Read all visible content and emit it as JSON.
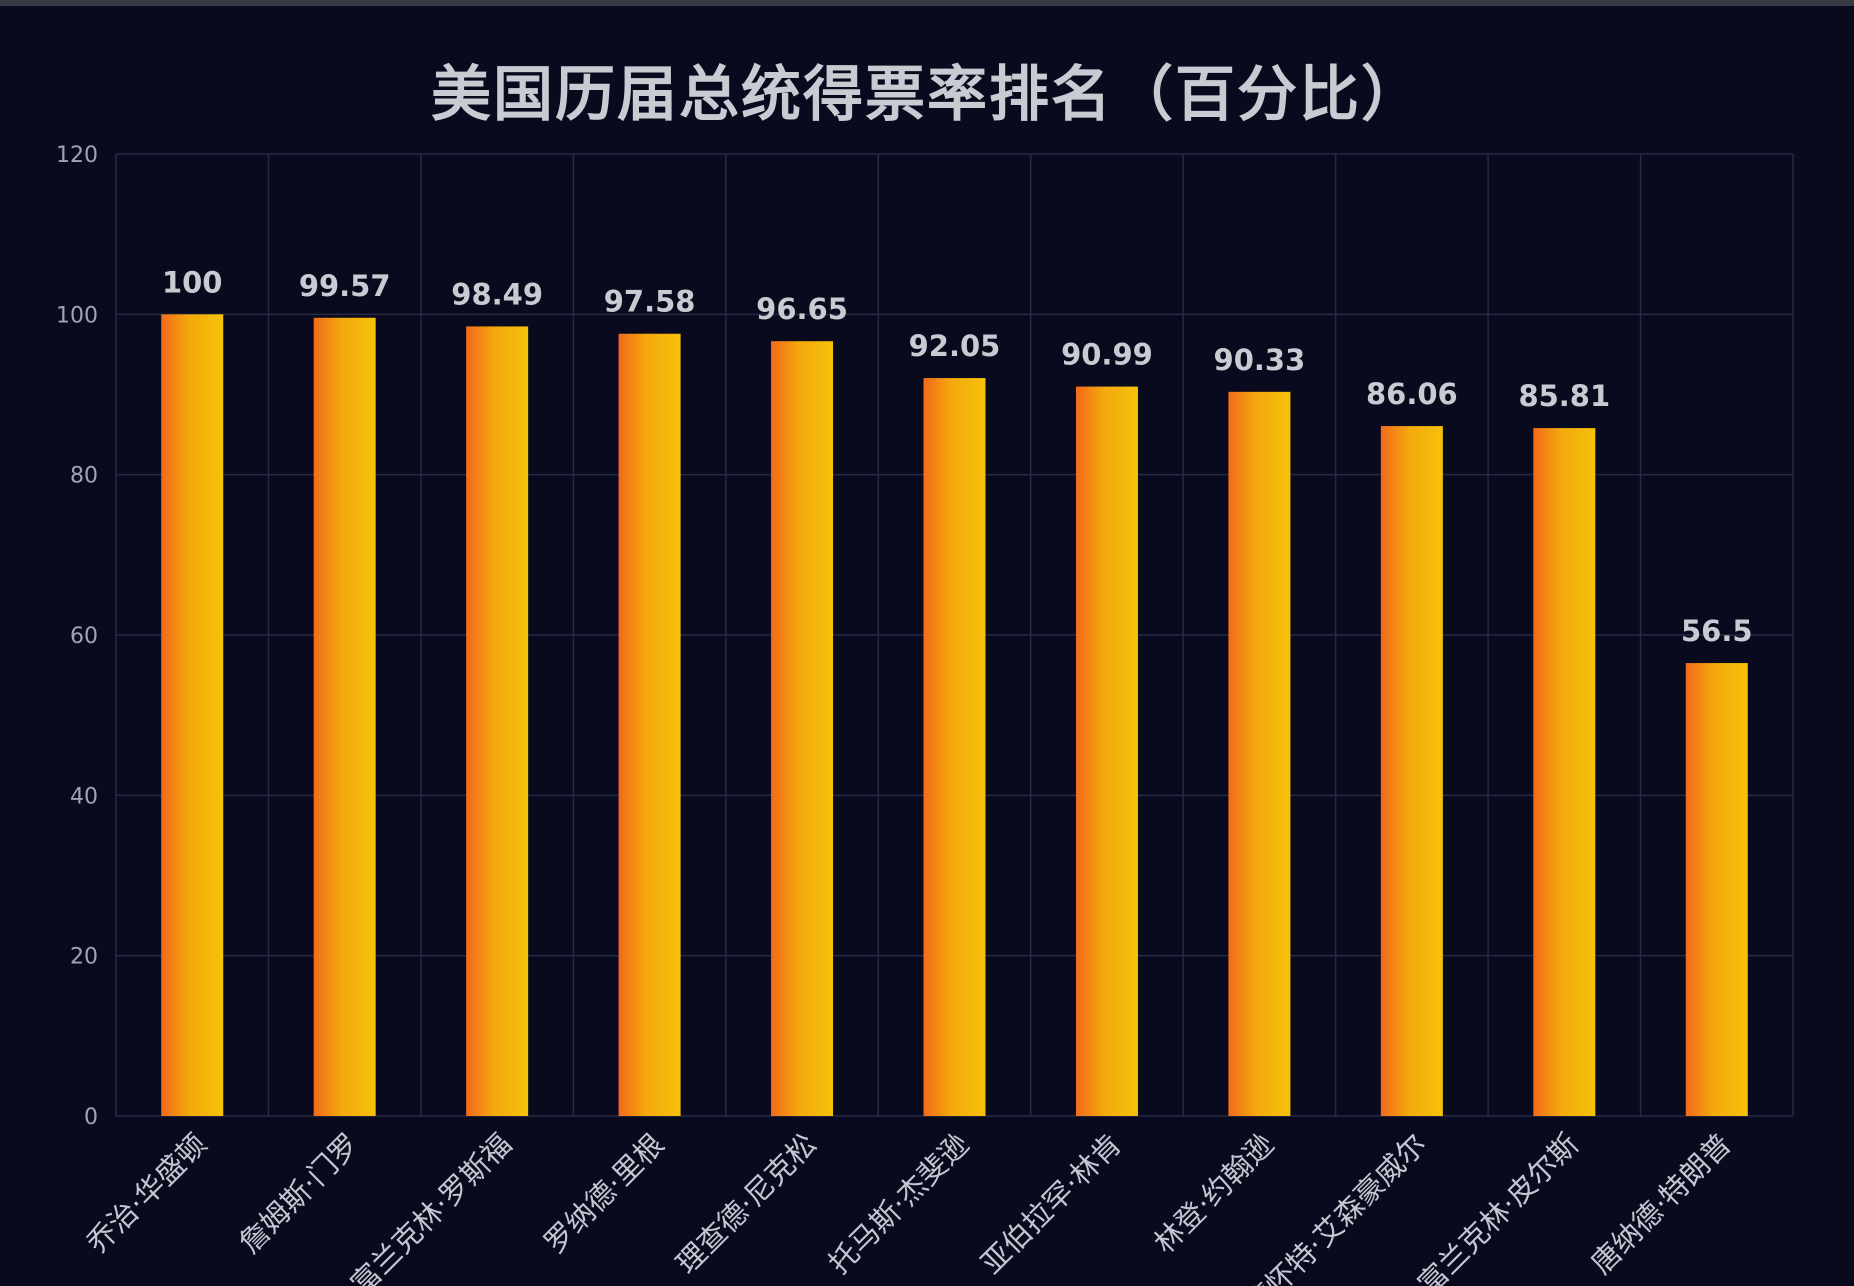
{
  "chart_data": {
    "type": "bar",
    "title": "美国历届总统得票率排名（百分比）",
    "xlabel": "",
    "ylabel": "",
    "ylim": [
      0,
      120
    ],
    "yticks": [
      0,
      20,
      40,
      60,
      80,
      100,
      120
    ],
    "grid": true,
    "categories": [
      "乔治·华盛顿",
      "詹姆斯·门罗",
      "富兰克林·罗斯福",
      "罗纳德·里根",
      "理查德·尼克松",
      "托马斯·杰斐逊",
      "亚伯拉罕·林肯",
      "林登·约翰逊",
      "德怀特·艾森豪威尔",
      "富兰克林·皮尔斯",
      "唐纳德·特朗普"
    ],
    "values": [
      100,
      99.57,
      98.49,
      97.58,
      96.65,
      92.05,
      90.99,
      90.33,
      86.06,
      85.81,
      56.5
    ],
    "value_labels": [
      "100",
      "99.57",
      "98.49",
      "97.58",
      "96.65",
      "92.05",
      "90.99",
      "90.33",
      "86.06",
      "85.81",
      "56.5"
    ],
    "bar_colors": [
      "#f26a1b",
      "#f4a80c",
      "#f5c20a"
    ],
    "background": "#0a0a1e",
    "grid_color": "#262a44"
  }
}
